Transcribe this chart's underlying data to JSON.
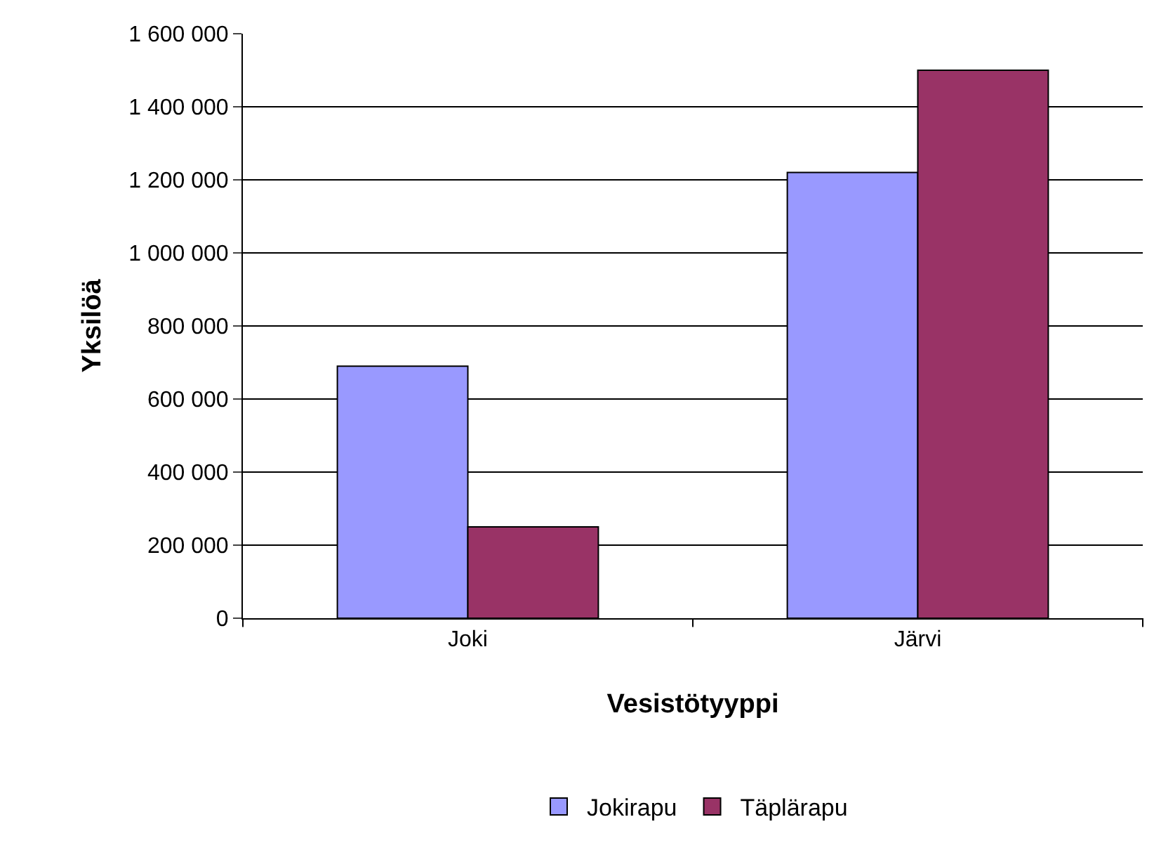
{
  "chart_data": {
    "type": "bar",
    "xlabel": "Vesistötyyppi",
    "ylabel": "Yksilöä",
    "categories": [
      "Joki",
      "Järvi"
    ],
    "series": [
      {
        "name": "Jokirapu",
        "color": "#9999ff",
        "values": [
          690000,
          1220000
        ]
      },
      {
        "name": "Täplärapu",
        "color": "#993366",
        "values": [
          250000,
          1500000
        ]
      }
    ],
    "ylim": [
      0,
      1600000
    ],
    "yticks": [
      0,
      {
        "value": 200000,
        "label": "200 000"
      },
      {
        "value": 400000,
        "label": "400 000"
      },
      {
        "value": 600000,
        "label": "600 000"
      },
      {
        "value": 800000,
        "label": "800 000"
      },
      {
        "value": 1000000,
        "label": "1 000 000"
      },
      {
        "value": 1200000,
        "label": "1 200 000"
      },
      {
        "value": 1400000,
        "label": "1 400 000"
      },
      {
        "value": 1600000,
        "label": "1 600 000"
      }
    ],
    "grid": "y",
    "legend": "bottom"
  }
}
